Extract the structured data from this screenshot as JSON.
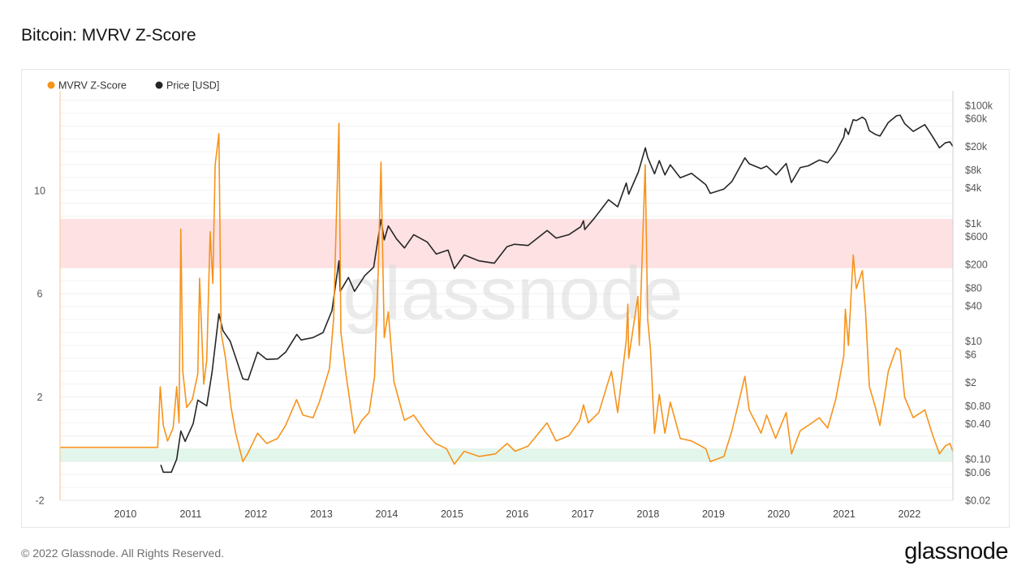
{
  "page": {
    "title": "Bitcoin: MVRV Z-Score",
    "copyright": "© 2022 Glassnode. All Rights Reserved.",
    "logo_text": "glassnode",
    "watermark_text": "glassnode"
  },
  "colors": {
    "mvrv": "#f7931a",
    "price": "#262626",
    "red_band": "#fde1e3",
    "green_band": "#e3f6ec",
    "grid": "#ececec"
  },
  "chart_data": {
    "type": "line",
    "title": "Bitcoin: MVRV Z-Score",
    "legend": {
      "placement": "top-left",
      "entries": [
        "MVRV Z-Score",
        "Price [USD]"
      ]
    },
    "grid": true,
    "x_axis": {
      "range": [
        "2009-01",
        "2022-09"
      ],
      "ticks": [
        "2010",
        "2011",
        "2012",
        "2013",
        "2014",
        "2015",
        "2016",
        "2017",
        "2018",
        "2019",
        "2020",
        "2021",
        "2022"
      ]
    },
    "y_left": {
      "range": [
        -2,
        13.7
      ],
      "ticks": [
        "10",
        "6",
        "2",
        "-2"
      ],
      "tick_values": [
        10,
        6,
        2,
        -2
      ]
    },
    "y_right": {
      "scale": "log",
      "range": [
        0.02,
        150000
      ],
      "ticks": [
        "$100k",
        "$60k",
        "$20k",
        "$8k",
        "$4k",
        "$1k",
        "$600",
        "$200",
        "$80",
        "$40",
        "$10",
        "$6",
        "$2",
        "$0.80",
        "$0.40",
        "$0.10",
        "$0.06",
        "$0.02"
      ],
      "tick_values": [
        100000,
        60000,
        20000,
        8000,
        4000,
        1000,
        600,
        200,
        80,
        40,
        10,
        6,
        2,
        0.8,
        0.4,
        0.1,
        0.06,
        0.02
      ]
    },
    "bands": [
      {
        "name": "",
        "axis": "left",
        "from": 7,
        "to": 8.9,
        "color": "#fde1e3"
      },
      {
        "name": "",
        "axis": "left",
        "from": -0.5,
        "to": 0,
        "color": "#e3f6ec"
      }
    ],
    "series": [
      {
        "name": "MVRV Z-Score",
        "axis": "left",
        "color": "#f7931a",
        "points": [
          [
            "2009-01-03",
            0.05
          ],
          [
            "2010-07-01",
            0.05
          ],
          [
            "2010-07-15",
            2.4
          ],
          [
            "2010-08-01",
            0.9
          ],
          [
            "2010-08-25",
            0.3
          ],
          [
            "2010-09-25",
            0.8
          ],
          [
            "2010-10-15",
            2.4
          ],
          [
            "2010-10-28",
            1.0
          ],
          [
            "2010-11-07",
            8.5
          ],
          [
            "2010-11-18",
            3.0
          ],
          [
            "2010-12-10",
            1.6
          ],
          [
            "2011-01-10",
            1.9
          ],
          [
            "2011-02-10",
            2.9
          ],
          [
            "2011-02-20",
            6.6
          ],
          [
            "2011-03-15",
            2.5
          ],
          [
            "2011-04-01",
            3.4
          ],
          [
            "2011-04-20",
            8.4
          ],
          [
            "2011-05-05",
            6.4
          ],
          [
            "2011-05-18",
            11.0
          ],
          [
            "2011-06-08",
            12.2
          ],
          [
            "2011-06-20",
            4.5
          ],
          [
            "2011-07-15",
            3.5
          ],
          [
            "2011-08-15",
            1.6
          ],
          [
            "2011-09-10",
            0.6
          ],
          [
            "2011-10-20",
            -0.5
          ],
          [
            "2011-11-15",
            -0.2
          ],
          [
            "2012-01-10",
            0.6
          ],
          [
            "2012-03-01",
            0.2
          ],
          [
            "2012-05-01",
            0.4
          ],
          [
            "2012-06-15",
            0.9
          ],
          [
            "2012-08-15",
            1.9
          ],
          [
            "2012-09-20",
            1.3
          ],
          [
            "2012-11-15",
            1.2
          ],
          [
            "2012-12-20",
            1.8
          ],
          [
            "2013-02-15",
            3.1
          ],
          [
            "2013-03-10",
            5.0
          ],
          [
            "2013-04-09",
            12.6
          ],
          [
            "2013-04-20",
            4.5
          ],
          [
            "2013-05-20",
            2.8
          ],
          [
            "2013-07-05",
            0.6
          ],
          [
            "2013-08-15",
            1.1
          ],
          [
            "2013-09-25",
            1.4
          ],
          [
            "2013-10-25",
            2.8
          ],
          [
            "2013-11-15",
            7.0
          ],
          [
            "2013-11-30",
            11.1
          ],
          [
            "2013-12-18",
            4.3
          ],
          [
            "2014-01-10",
            5.3
          ],
          [
            "2014-02-10",
            2.6
          ],
          [
            "2014-04-10",
            1.1
          ],
          [
            "2014-06-01",
            1.3
          ],
          [
            "2014-08-10",
            0.6
          ],
          [
            "2014-10-01",
            0.2
          ],
          [
            "2014-12-01",
            0.0
          ],
          [
            "2015-01-14",
            -0.6
          ],
          [
            "2015-03-10",
            -0.1
          ],
          [
            "2015-06-01",
            -0.3
          ],
          [
            "2015-09-01",
            -0.2
          ],
          [
            "2015-11-05",
            0.2
          ],
          [
            "2015-12-20",
            -0.1
          ],
          [
            "2016-03-01",
            0.1
          ],
          [
            "2016-06-15",
            1.0
          ],
          [
            "2016-08-05",
            0.3
          ],
          [
            "2016-10-15",
            0.5
          ],
          [
            "2016-12-15",
            1.1
          ],
          [
            "2017-01-05",
            1.7
          ],
          [
            "2017-02-01",
            1.0
          ],
          [
            "2017-04-01",
            1.4
          ],
          [
            "2017-06-10",
            3.0
          ],
          [
            "2017-07-15",
            1.4
          ],
          [
            "2017-09-01",
            4.2
          ],
          [
            "2017-09-10",
            5.6
          ],
          [
            "2017-09-15",
            3.5
          ],
          [
            "2017-11-05",
            5.9
          ],
          [
            "2017-11-13",
            4.0
          ],
          [
            "2017-12-16",
            11.0
          ],
          [
            "2017-12-30",
            5.0
          ],
          [
            "2018-01-15",
            3.8
          ],
          [
            "2018-02-06",
            0.6
          ],
          [
            "2018-03-05",
            2.1
          ],
          [
            "2018-04-05",
            0.6
          ],
          [
            "2018-05-05",
            1.8
          ],
          [
            "2018-06-30",
            0.4
          ],
          [
            "2018-09-01",
            0.3
          ],
          [
            "2018-11-20",
            0.0
          ],
          [
            "2018-12-15",
            -0.5
          ],
          [
            "2019-03-01",
            -0.3
          ],
          [
            "2019-04-15",
            0.7
          ],
          [
            "2019-06-26",
            2.8
          ],
          [
            "2019-07-20",
            1.5
          ],
          [
            "2019-09-25",
            0.6
          ],
          [
            "2019-10-26",
            1.3
          ],
          [
            "2019-12-15",
            0.4
          ],
          [
            "2020-02-12",
            1.4
          ],
          [
            "2020-03-13",
            -0.2
          ],
          [
            "2020-05-01",
            0.7
          ],
          [
            "2020-06-15",
            0.9
          ],
          [
            "2020-08-15",
            1.2
          ],
          [
            "2020-10-01",
            0.8
          ],
          [
            "2020-11-15",
            1.9
          ],
          [
            "2020-12-30",
            3.6
          ],
          [
            "2021-01-08",
            5.4
          ],
          [
            "2021-01-25",
            4.0
          ],
          [
            "2021-02-21",
            7.5
          ],
          [
            "2021-03-10",
            6.2
          ],
          [
            "2021-04-13",
            6.9
          ],
          [
            "2021-05-01",
            5.3
          ],
          [
            "2021-05-22",
            2.4
          ],
          [
            "2021-06-25",
            1.6
          ],
          [
            "2021-07-20",
            0.9
          ],
          [
            "2021-09-05",
            3.0
          ],
          [
            "2021-10-20",
            3.9
          ],
          [
            "2021-11-10",
            3.8
          ],
          [
            "2021-12-05",
            2.0
          ],
          [
            "2022-01-22",
            1.2
          ],
          [
            "2022-03-28",
            1.5
          ],
          [
            "2022-05-12",
            0.5
          ],
          [
            "2022-06-18",
            -0.2
          ],
          [
            "2022-07-20",
            0.1
          ],
          [
            "2022-08-15",
            0.2
          ],
          [
            "2022-09-01",
            -0.1
          ]
        ]
      },
      {
        "name": "Price [USD]",
        "axis": "right",
        "color": "#262626",
        "points": [
          [
            "2010-07-18",
            0.08
          ],
          [
            "2010-08-01",
            0.06
          ],
          [
            "2010-09-15",
            0.06
          ],
          [
            "2010-10-15",
            0.1
          ],
          [
            "2010-11-07",
            0.3
          ],
          [
            "2010-12-01",
            0.2
          ],
          [
            "2011-01-15",
            0.4
          ],
          [
            "2011-02-10",
            1.0
          ],
          [
            "2011-04-01",
            0.8
          ],
          [
            "2011-05-01",
            3.0
          ],
          [
            "2011-06-08",
            29.0
          ],
          [
            "2011-07-01",
            15.0
          ],
          [
            "2011-08-10",
            10.0
          ],
          [
            "2011-10-20",
            2.3
          ],
          [
            "2011-11-18",
            2.2
          ],
          [
            "2012-01-10",
            6.5
          ],
          [
            "2012-03-01",
            4.9
          ],
          [
            "2012-05-01",
            5.0
          ],
          [
            "2012-06-15",
            6.5
          ],
          [
            "2012-08-16",
            13.0
          ],
          [
            "2012-09-10",
            10.5
          ],
          [
            "2012-11-15",
            11.5
          ],
          [
            "2013-01-10",
            14.0
          ],
          [
            "2013-03-01",
            33.0
          ],
          [
            "2013-04-09",
            230.0
          ],
          [
            "2013-04-16",
            70.0
          ],
          [
            "2013-06-01",
            120.0
          ],
          [
            "2013-07-05",
            70.0
          ],
          [
            "2013-09-01",
            130.0
          ],
          [
            "2013-10-20",
            180.0
          ],
          [
            "2013-11-30",
            1150.0
          ],
          [
            "2013-12-18",
            520.0
          ],
          [
            "2014-01-10",
            900.0
          ],
          [
            "2014-02-25",
            540.0
          ],
          [
            "2014-04-10",
            380.0
          ],
          [
            "2014-06-01",
            640.0
          ],
          [
            "2014-08-15",
            480.0
          ],
          [
            "2014-10-05",
            300.0
          ],
          [
            "2014-12-10",
            350.0
          ],
          [
            "2015-01-14",
            170.0
          ],
          [
            "2015-03-10",
            290.0
          ],
          [
            "2015-06-01",
            230.0
          ],
          [
            "2015-08-25",
            210.0
          ],
          [
            "2015-11-04",
            400.0
          ],
          [
            "2015-12-15",
            440.0
          ],
          [
            "2016-03-01",
            420.0
          ],
          [
            "2016-06-16",
            750.0
          ],
          [
            "2016-08-05",
            560.0
          ],
          [
            "2016-10-15",
            640.0
          ],
          [
            "2016-12-20",
            870.0
          ],
          [
            "2017-01-05",
            1100.0
          ],
          [
            "2017-01-12",
            780.0
          ],
          [
            "2017-03-10",
            1250.0
          ],
          [
            "2017-05-25",
            2500.0
          ],
          [
            "2017-07-15",
            1900.0
          ],
          [
            "2017-09-01",
            4800.0
          ],
          [
            "2017-09-15",
            3100.0
          ],
          [
            "2017-11-08",
            7400.0
          ],
          [
            "2017-12-17",
            19000.0
          ],
          [
            "2017-12-30",
            13000.0
          ],
          [
            "2018-02-06",
            6900.0
          ],
          [
            "2018-03-05",
            11500.0
          ],
          [
            "2018-04-05",
            6600.0
          ],
          [
            "2018-05-05",
            9800.0
          ],
          [
            "2018-06-30",
            5900.0
          ],
          [
            "2018-09-01",
            7000.0
          ],
          [
            "2018-11-20",
            4500.0
          ],
          [
            "2018-12-15",
            3200.0
          ],
          [
            "2019-03-01",
            3800.0
          ],
          [
            "2019-04-15",
            5100.0
          ],
          [
            "2019-06-26",
            12800.0
          ],
          [
            "2019-07-20",
            10200.0
          ],
          [
            "2019-09-25",
            8400.0
          ],
          [
            "2019-10-26",
            9300.0
          ],
          [
            "2019-12-18",
            6600.0
          ],
          [
            "2020-02-12",
            10300.0
          ],
          [
            "2020-03-12",
            4900.0
          ],
          [
            "2020-05-01",
            8800.0
          ],
          [
            "2020-06-15",
            9400.0
          ],
          [
            "2020-08-15",
            11800.0
          ],
          [
            "2020-10-01",
            10600.0
          ],
          [
            "2020-11-15",
            16000.0
          ],
          [
            "2020-12-30",
            28900.0
          ],
          [
            "2021-01-08",
            40600.0
          ],
          [
            "2021-01-25",
            32000.0
          ],
          [
            "2021-02-21",
            57000.0
          ],
          [
            "2021-03-10",
            55000.0
          ],
          [
            "2021-04-13",
            63000.0
          ],
          [
            "2021-05-01",
            57000.0
          ],
          [
            "2021-05-22",
            37000.0
          ],
          [
            "2021-06-25",
            32000.0
          ],
          [
            "2021-07-20",
            30000.0
          ],
          [
            "2021-09-05",
            51000.0
          ],
          [
            "2021-10-20",
            66000.0
          ],
          [
            "2021-11-10",
            68000.0
          ],
          [
            "2021-12-05",
            49000.0
          ],
          [
            "2022-01-22",
            36000.0
          ],
          [
            "2022-03-28",
            47000.0
          ],
          [
            "2022-05-12",
            29000.0
          ],
          [
            "2022-06-18",
            19000.0
          ],
          [
            "2022-07-20",
            23000.0
          ],
          [
            "2022-08-15",
            24000.0
          ],
          [
            "2022-09-01",
            20000.0
          ]
        ]
      }
    ]
  }
}
